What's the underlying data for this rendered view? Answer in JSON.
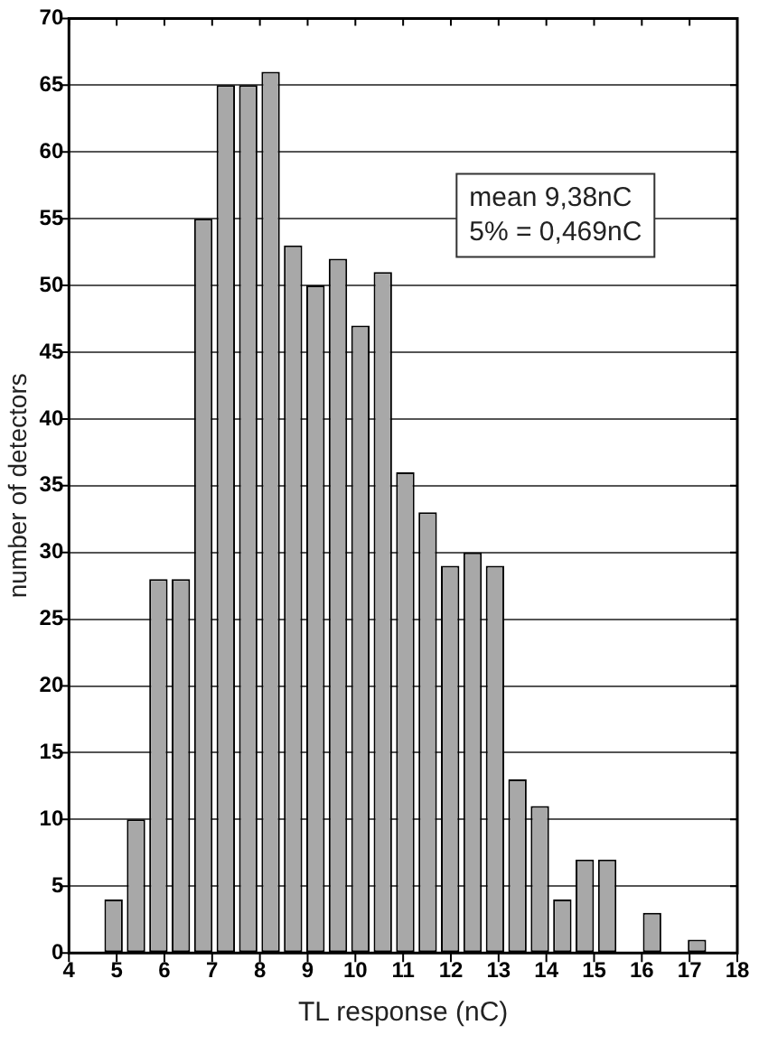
{
  "chart_data": {
    "type": "histogram",
    "xlabel": "TL response (nC)",
    "ylabel": "number of detectors",
    "bins": [
      4.7,
      5.17,
      5.64,
      6.11,
      6.58,
      7.05,
      7.52,
      7.99,
      8.46,
      8.93,
      9.4,
      9.87,
      10.34,
      10.81,
      11.28,
      11.75,
      12.22,
      12.69,
      13.16,
      13.63,
      14.1,
      14.57,
      15.04,
      15.51,
      15.98,
      16.45,
      16.92,
      17.39
    ],
    "values": [
      4,
      10,
      28,
      28,
      55,
      65,
      65,
      66,
      53,
      50,
      52,
      47,
      51,
      36,
      33,
      29,
      30,
      29,
      13,
      11,
      4,
      7,
      7,
      0,
      3,
      0,
      1
    ],
    "color": "#a8a8a8",
    "xlim": [
      4,
      18
    ],
    "xticks": [
      4,
      5,
      6,
      7,
      8,
      9,
      10,
      11,
      12,
      13,
      14,
      15,
      16,
      17,
      18
    ],
    "ylim": [
      0,
      70
    ],
    "yticks": [
      0,
      5,
      10,
      15,
      20,
      25,
      30,
      35,
      40,
      45,
      50,
      55,
      60,
      65,
      70
    ],
    "grid": "y",
    "legend": false,
    "annotations": [
      "mean 9,38nC",
      "5% = 0,469nC"
    ]
  }
}
